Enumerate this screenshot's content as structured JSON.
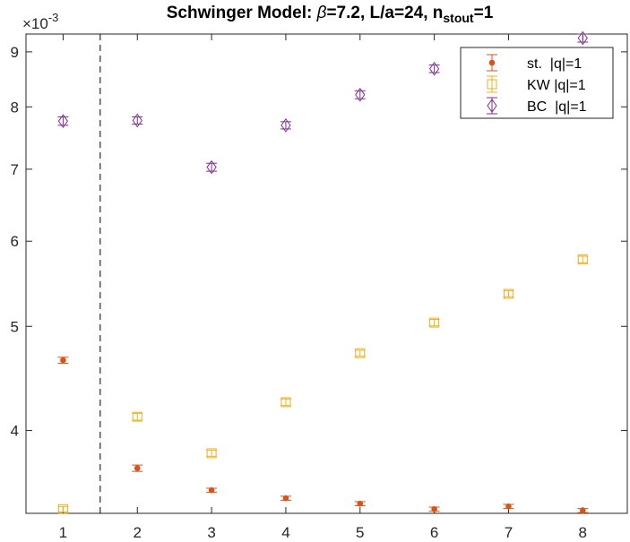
{
  "chart_data": {
    "type": "scatter",
    "title_parts": {
      "prefix": "Schwinger Model: ",
      "beta": "β",
      "mid": "=7.2, L/a=24, n",
      "sub": "stout",
      "suffix": "=1"
    },
    "y_scale": "log",
    "y_exponent_label": "×10",
    "y_exponent_power": "-3",
    "x_ticks": [
      "1",
      "2",
      "3",
      "4",
      "5",
      "6",
      "7",
      "8"
    ],
    "y_ticks": [
      "4",
      "5",
      "6",
      "7",
      "8",
      "9"
    ],
    "xlim": [
      0.5,
      8.6
    ],
    "ylim": [
      3.35,
      9.35
    ],
    "separator_x": 1.5,
    "grid": false,
    "legend_position": "top-right",
    "series": [
      {
        "name": "st.  |q|=1",
        "marker": "dot",
        "color": "#D95319",
        "x": [
          1,
          2,
          3,
          4,
          5,
          6,
          7,
          8
        ],
        "y": [
          4.65,
          3.69,
          3.52,
          3.46,
          3.42,
          3.38,
          3.4,
          3.37
        ],
        "err": [
          0.03,
          0.025,
          0.015,
          0.015,
          0.015,
          0.015,
          0.015,
          0.015
        ]
      },
      {
        "name": "KW |q|=1",
        "marker": "square",
        "color": "#EDB120",
        "x": [
          1,
          2,
          3,
          4,
          5,
          6,
          7,
          8
        ],
        "y": [
          3.38,
          4.12,
          3.81,
          4.25,
          4.72,
          5.04,
          5.36,
          5.77
        ],
        "err": [
          0.02,
          0.03,
          0.025,
          0.03,
          0.03,
          0.035,
          0.035,
          0.04
        ]
      },
      {
        "name": "BC  |q|=1",
        "marker": "diamond",
        "color": "#7E2F8E",
        "x": [
          1,
          2,
          3,
          4,
          5,
          6,
          7,
          8
        ],
        "y": [
          7.76,
          7.77,
          7.03,
          7.69,
          8.21,
          8.68,
          8.18,
          9.27
        ],
        "err": [
          0.07,
          0.06,
          0.06,
          0.06,
          0.07,
          0.07,
          0.07,
          0.08
        ]
      }
    ]
  }
}
